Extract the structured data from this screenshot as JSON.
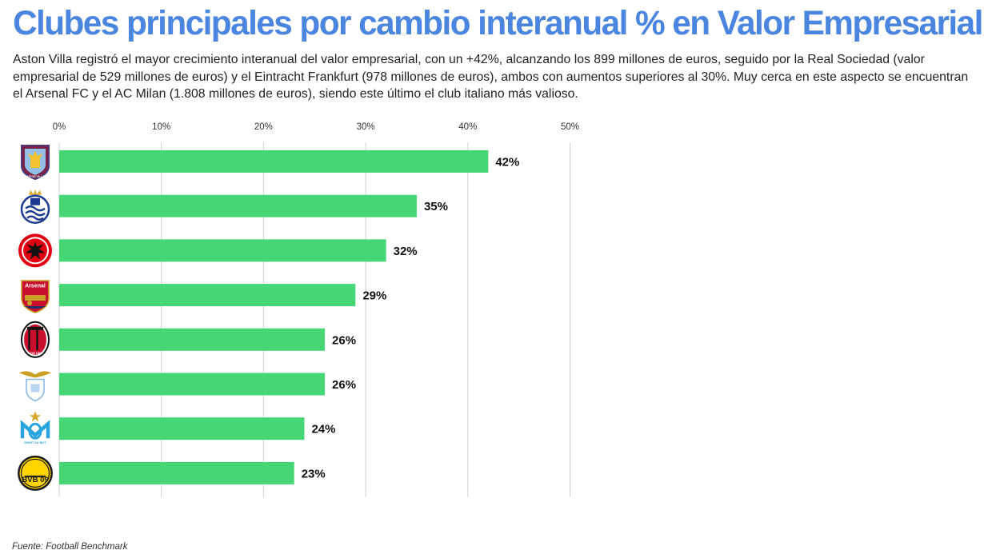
{
  "header": {
    "title": "Clubes principales por cambio interanual % en Valor Empresarial",
    "subtitle": "Aston Villa registró el mayor crecimiento interanual del valor empresarial, con un +42%, alcanzando los 899 millones de euros, seguido por la Real Sociedad (valor empresarial de 529 millones de euros) y el Eintracht Frankfurt (978 millones de euros), ambos con aumentos superiores al 30%. Muy cerca en este aspecto se encuentran el Arsenal FC y el AC Milan (1.808 millones de euros), siendo este último el club italiano más valioso."
  },
  "footer": {
    "source": "Fuente: Football Benchmark"
  },
  "colors": {
    "bar": "#46d676",
    "title": "#4a86e0",
    "grid": "#cfcfcf"
  },
  "chart_data": {
    "type": "bar",
    "orientation": "horizontal",
    "title": "Clubes principales por cambio interanual % en Valor Empresarial",
    "xlabel": "",
    "ylabel": "",
    "xlim": [
      0,
      50
    ],
    "x_ticks": [
      0,
      10,
      20,
      30,
      40,
      50
    ],
    "x_tick_labels": [
      "0%",
      "10%",
      "20%",
      "30%",
      "40%",
      "50%"
    ],
    "grid": true,
    "categories": [
      "Aston Villa",
      "Real Sociedad",
      "Eintracht Frankfurt",
      "Arsenal FC",
      "AC Milan",
      "SS Lazio",
      "Olympique de Marseille",
      "Borussia Dortmund"
    ],
    "logo_icons": [
      "aston-villa-crest-icon",
      "real-sociedad-crest-icon",
      "eintracht-frankfurt-crest-icon",
      "arsenal-crest-icon",
      "ac-milan-crest-icon",
      "lazio-crest-icon",
      "marseille-crest-icon",
      "bvb-crest-icon"
    ],
    "logo_text": [
      "ASTON VILLA",
      "",
      "",
      "Arsenal",
      "ACM 1899",
      "",
      "DROIT AU BUT",
      "BVB 09"
    ],
    "values": [
      42,
      35,
      32,
      29,
      26,
      26,
      24,
      23
    ],
    "value_labels": [
      "42%",
      "35%",
      "32%",
      "29%",
      "26%",
      "26%",
      "24%",
      "23%"
    ]
  }
}
